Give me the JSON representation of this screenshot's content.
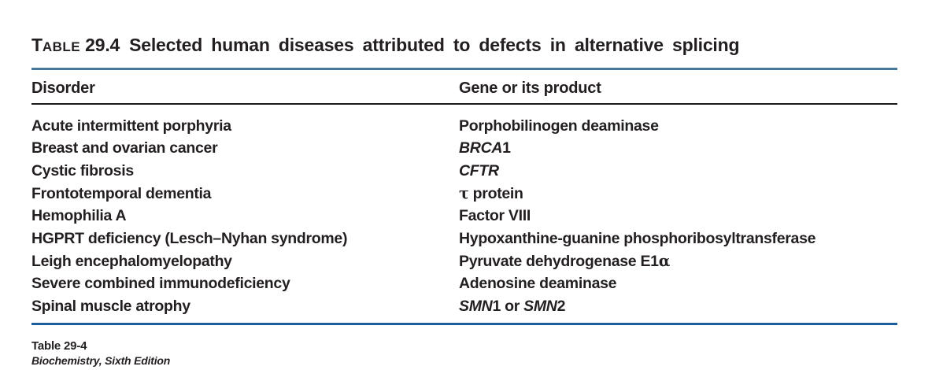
{
  "title": {
    "label_initial": "T",
    "label_rest": "ABLE",
    "number": "29.4",
    "text": "Selected human diseases attributed to defects in alternative splicing"
  },
  "table": {
    "col1_header": "Disorder",
    "col2_header": "Gene or its product",
    "rows": [
      {
        "disorder": "Acute intermittent porphyria",
        "gene": [
          {
            "text": "Porphobilinogen deaminase"
          }
        ]
      },
      {
        "disorder": "Breast and ovarian cancer",
        "gene": [
          {
            "text": "BRCA",
            "style": "italic"
          },
          {
            "text": "1"
          }
        ]
      },
      {
        "disorder": "Cystic fibrosis",
        "gene": [
          {
            "text": "CFTR",
            "style": "italic"
          }
        ]
      },
      {
        "disorder": "Frontotemporal dementia",
        "gene": [
          {
            "text": "τ",
            "style": "greek"
          },
          {
            "text": " protein"
          }
        ]
      },
      {
        "disorder": "Hemophilia A",
        "gene": [
          {
            "text": "Factor VIII"
          }
        ]
      },
      {
        "disorder": "HGPRT deficiency (Lesch–Nyhan syndrome)",
        "gene": [
          {
            "text": "Hypoxanthine-guanine phosphoribosyltransferase"
          }
        ]
      },
      {
        "disorder": "Leigh encephalomyelopathy",
        "gene": [
          {
            "text": "Pyruvate dehydrogenase E1"
          },
          {
            "text": "α",
            "style": "greek"
          }
        ]
      },
      {
        "disorder": "Severe combined immunodeficiency",
        "gene": [
          {
            "text": "Adenosine deaminase"
          }
        ]
      },
      {
        "disorder": "Spinal muscle atrophy",
        "gene": [
          {
            "text": "SMN",
            "style": "italic"
          },
          {
            "text": "1 or "
          },
          {
            "text": "SMN",
            "style": "italic"
          },
          {
            "text": "2"
          }
        ]
      }
    ]
  },
  "footer": {
    "line1": "Table 29-4",
    "line2": "Biochemistry, Sixth Edition"
  },
  "colors": {
    "text": "#231f20",
    "top_rule": "#44799b",
    "header_rule": "#1a1a1a",
    "bottom_rule": "#1c5d9e"
  }
}
